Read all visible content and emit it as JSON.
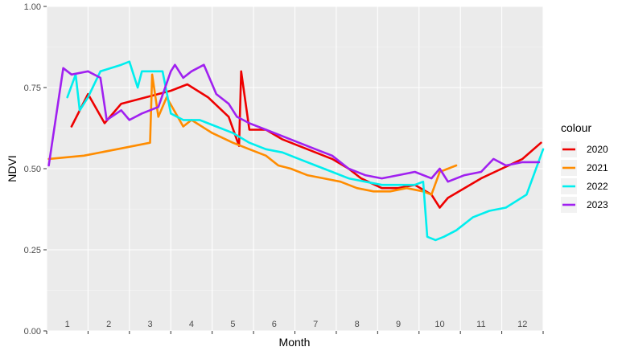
{
  "chart_data": {
    "type": "line",
    "title": "",
    "xlabel": "Month",
    "ylabel": "NDVI",
    "xlim": [
      0.5,
      12.5
    ],
    "ylim": [
      0,
      1
    ],
    "grid": true,
    "legend_position": "right",
    "legend_title": "colour",
    "x_tick_labels": [
      "1",
      "2",
      "3",
      "4",
      "5",
      "6",
      "7",
      "8",
      "9",
      "10",
      "11",
      "12"
    ],
    "y_tick_labels": [
      "0.00",
      "0.25",
      "0.50",
      "0.75",
      "1.00"
    ],
    "y_ticks": [
      0,
      0.25,
      0.5,
      0.75,
      1.0
    ],
    "series": [
      {
        "name": "2020",
        "color": "#ee0000",
        "points": [
          [
            1.1,
            0.63
          ],
          [
            1.5,
            0.73
          ],
          [
            1.9,
            0.64
          ],
          [
            2.3,
            0.7
          ],
          [
            2.9,
            0.72
          ],
          [
            3.5,
            0.74
          ],
          [
            3.9,
            0.76
          ],
          [
            4.4,
            0.72
          ],
          [
            4.9,
            0.66
          ],
          [
            5.15,
            0.57
          ],
          [
            5.2,
            0.8
          ],
          [
            5.4,
            0.62
          ],
          [
            5.8,
            0.62
          ],
          [
            6.2,
            0.59
          ],
          [
            6.6,
            0.57
          ],
          [
            7.0,
            0.55
          ],
          [
            7.4,
            0.53
          ],
          [
            7.8,
            0.5
          ],
          [
            8.1,
            0.47
          ],
          [
            8.6,
            0.44
          ],
          [
            9.0,
            0.44
          ],
          [
            9.4,
            0.45
          ],
          [
            9.8,
            0.42
          ],
          [
            10.0,
            0.38
          ],
          [
            10.2,
            0.41
          ],
          [
            10.6,
            0.44
          ],
          [
            11.0,
            0.47
          ],
          [
            11.5,
            0.5
          ],
          [
            12.0,
            0.53
          ],
          [
            12.45,
            0.58
          ]
        ]
      },
      {
        "name": "2021",
        "color": "#ff8c00",
        "points": [
          [
            0.55,
            0.53
          ],
          [
            1.4,
            0.54
          ],
          [
            2.2,
            0.56
          ],
          [
            3.0,
            0.58
          ],
          [
            3.05,
            0.79
          ],
          [
            3.2,
            0.66
          ],
          [
            3.4,
            0.72
          ],
          [
            3.8,
            0.63
          ],
          [
            4.0,
            0.65
          ],
          [
            4.5,
            0.61
          ],
          [
            5.0,
            0.58
          ],
          [
            5.4,
            0.56
          ],
          [
            5.8,
            0.54
          ],
          [
            6.1,
            0.51
          ],
          [
            6.4,
            0.5
          ],
          [
            6.8,
            0.48
          ],
          [
            7.2,
            0.47
          ],
          [
            7.6,
            0.46
          ],
          [
            8.0,
            0.44
          ],
          [
            8.4,
            0.43
          ],
          [
            8.8,
            0.43
          ],
          [
            9.2,
            0.44
          ],
          [
            9.6,
            0.43
          ],
          [
            9.8,
            0.42
          ],
          [
            10.0,
            0.49
          ],
          [
            10.4,
            0.51
          ]
        ]
      },
      {
        "name": "2022",
        "color": "#00eeee",
        "points": [
          [
            1.0,
            0.72
          ],
          [
            1.2,
            0.79
          ],
          [
            1.3,
            0.68
          ],
          [
            1.5,
            0.72
          ],
          [
            1.8,
            0.8
          ],
          [
            2.3,
            0.82
          ],
          [
            2.5,
            0.83
          ],
          [
            2.7,
            0.75
          ],
          [
            2.8,
            0.8
          ],
          [
            3.0,
            0.8
          ],
          [
            3.3,
            0.8
          ],
          [
            3.5,
            0.67
          ],
          [
            3.8,
            0.65
          ],
          [
            4.2,
            0.65
          ],
          [
            4.6,
            0.63
          ],
          [
            5.0,
            0.61
          ],
          [
            5.4,
            0.58
          ],
          [
            5.8,
            0.56
          ],
          [
            6.2,
            0.55
          ],
          [
            6.6,
            0.53
          ],
          [
            7.0,
            0.51
          ],
          [
            7.4,
            0.49
          ],
          [
            7.8,
            0.47
          ],
          [
            8.2,
            0.46
          ],
          [
            8.6,
            0.45
          ],
          [
            9.0,
            0.45
          ],
          [
            9.4,
            0.45
          ],
          [
            9.6,
            0.46
          ],
          [
            9.7,
            0.29
          ],
          [
            9.9,
            0.28
          ],
          [
            10.1,
            0.29
          ],
          [
            10.4,
            0.31
          ],
          [
            10.8,
            0.35
          ],
          [
            11.2,
            0.37
          ],
          [
            11.6,
            0.38
          ],
          [
            12.1,
            0.42
          ],
          [
            12.5,
            0.56
          ]
        ]
      },
      {
        "name": "2023",
        "color": "#a020f0",
        "points": [
          [
            0.55,
            0.51
          ],
          [
            0.9,
            0.81
          ],
          [
            1.1,
            0.79
          ],
          [
            1.5,
            0.8
          ],
          [
            1.8,
            0.78
          ],
          [
            1.95,
            0.65
          ],
          [
            2.3,
            0.68
          ],
          [
            2.5,
            0.65
          ],
          [
            2.8,
            0.67
          ],
          [
            3.2,
            0.69
          ],
          [
            3.5,
            0.8
          ],
          [
            3.6,
            0.82
          ],
          [
            3.8,
            0.78
          ],
          [
            4.0,
            0.8
          ],
          [
            4.3,
            0.82
          ],
          [
            4.6,
            0.73
          ],
          [
            4.9,
            0.7
          ],
          [
            5.1,
            0.66
          ],
          [
            5.4,
            0.64
          ],
          [
            5.8,
            0.62
          ],
          [
            6.2,
            0.6
          ],
          [
            6.6,
            0.58
          ],
          [
            7.0,
            0.56
          ],
          [
            7.4,
            0.54
          ],
          [
            7.8,
            0.5
          ],
          [
            8.2,
            0.48
          ],
          [
            8.6,
            0.47
          ],
          [
            9.0,
            0.48
          ],
          [
            9.4,
            0.49
          ],
          [
            9.8,
            0.47
          ],
          [
            10.0,
            0.5
          ],
          [
            10.2,
            0.46
          ],
          [
            10.6,
            0.48
          ],
          [
            11.0,
            0.49
          ],
          [
            11.3,
            0.53
          ],
          [
            11.6,
            0.51
          ],
          [
            12.0,
            0.52
          ],
          [
            12.4,
            0.52
          ]
        ]
      }
    ]
  }
}
